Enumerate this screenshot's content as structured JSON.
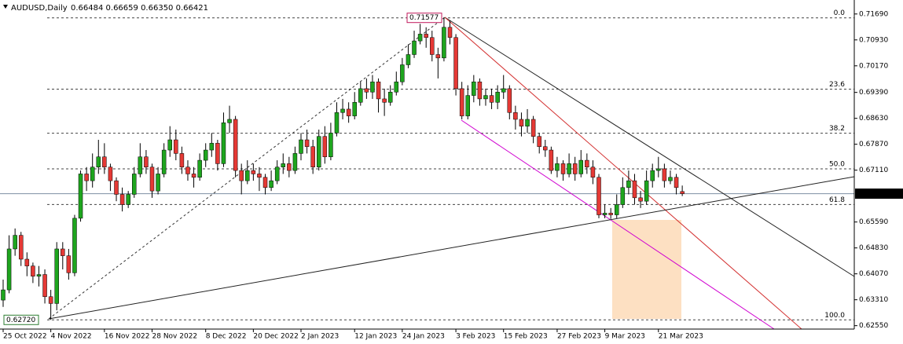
{
  "chart_data": {
    "type": "candlestick",
    "header": {
      "symbol": "AUDUSD,Daily",
      "quote": "0.66484 0.66659 0.66350 0.66421"
    },
    "bull_color": "#1ea51e",
    "bear_color": "#e53935",
    "ylim": [
      0.6245,
      0.721
    ],
    "yticks": [
      {
        "value": 0.7169,
        "label": "0.71690"
      },
      {
        "value": 0.7093,
        "label": "0.70930"
      },
      {
        "value": 0.7017,
        "label": "0.70170"
      },
      {
        "value": 0.6939,
        "label": "0.69390"
      },
      {
        "value": 0.6863,
        "label": "0.68630"
      },
      {
        "value": 0.6787,
        "label": "0.67870"
      },
      {
        "value": 0.6711,
        "label": "0.67110"
      },
      {
        "value": 0.6559,
        "label": "0.65590"
      },
      {
        "value": 0.6483,
        "label": "0.64830"
      },
      {
        "value": 0.6407,
        "label": "0.64070"
      },
      {
        "value": 0.6331,
        "label": "0.63310"
      },
      {
        "value": 0.6255,
        "label": "0.62550"
      }
    ],
    "fib_levels": [
      {
        "value": 0.71577,
        "label": "0.0"
      },
      {
        "value": 0.69487,
        "label": "23.6"
      },
      {
        "value": 0.68194,
        "label": "38.2"
      },
      {
        "value": 0.67149,
        "label": "50.0"
      },
      {
        "value": 0.66103,
        "label": "61.8"
      },
      {
        "value": 0.6272,
        "label": "100.0"
      }
    ],
    "swing_high": 0.71577,
    "swing_low": {
      "value": 0.6272,
      "label": "0.62720"
    },
    "categories": [
      "25 Oct 2022",
      null,
      null,
      null,
      null,
      null,
      null,
      null,
      "4 Nov 2022",
      null,
      null,
      null,
      null,
      null,
      null,
      null,
      null,
      "16 Nov 2022",
      null,
      null,
      null,
      null,
      null,
      null,
      null,
      "28 Nov 2022",
      null,
      null,
      null,
      null,
      null,
      null,
      null,
      null,
      "8 Dec 2022",
      null,
      null,
      null,
      null,
      null,
      null,
      null,
      "20 Dec 2022",
      null,
      null,
      null,
      null,
      null,
      null,
      null,
      "2 Jan 2023",
      null,
      null,
      null,
      null,
      null,
      null,
      null,
      null,
      "12 Jan 2023",
      null,
      null,
      null,
      null,
      null,
      null,
      null,
      "24 Jan 2023",
      null,
      null,
      null,
      null,
      null,
      null,
      null,
      null,
      "3 Feb 2023",
      null,
      null,
      null,
      null,
      null,
      null,
      null,
      "15 Feb 2023",
      null,
      null,
      null,
      null,
      null,
      null,
      null,
      null,
      "27 Feb 2023",
      null,
      null,
      null,
      null,
      null,
      null,
      null,
      "9 Mar 2023",
      null,
      null,
      null,
      null,
      null,
      null,
      null,
      null,
      "21 Mar 2023",
      null,
      null,
      null,
      null
    ],
    "ohlc": [
      [
        0.633,
        0.639,
        0.631,
        0.636
      ],
      [
        0.636,
        0.652,
        0.635,
        0.648
      ],
      [
        0.648,
        0.654,
        0.646,
        0.652
      ],
      [
        0.652,
        0.653,
        0.643,
        0.645
      ],
      [
        0.645,
        0.647,
        0.64,
        0.643
      ],
      [
        0.643,
        0.644,
        0.638,
        0.64
      ],
      [
        0.64,
        0.643,
        0.637,
        0.6405
      ],
      [
        0.6405,
        0.642,
        0.632,
        0.634
      ],
      [
        0.634,
        0.636,
        0.6272,
        0.632
      ],
      [
        0.632,
        0.65,
        0.63,
        0.648
      ],
      [
        0.648,
        0.65,
        0.642,
        0.646
      ],
      [
        0.646,
        0.648,
        0.639,
        0.641
      ],
      [
        0.641,
        0.658,
        0.64,
        0.657
      ],
      [
        0.657,
        0.671,
        0.656,
        0.67
      ],
      [
        0.67,
        0.672,
        0.665,
        0.668
      ],
      [
        0.668,
        0.676,
        0.666,
        0.672
      ],
      [
        0.672,
        0.68,
        0.67,
        0.675
      ],
      [
        0.675,
        0.679,
        0.67,
        0.672
      ],
      [
        0.672,
        0.673,
        0.665,
        0.668
      ],
      [
        0.668,
        0.669,
        0.662,
        0.664
      ],
      [
        0.664,
        0.666,
        0.659,
        0.661
      ],
      [
        0.661,
        0.665,
        0.66,
        0.664
      ],
      [
        0.664,
        0.672,
        0.663,
        0.67
      ],
      [
        0.67,
        0.679,
        0.669,
        0.675
      ],
      [
        0.675,
        0.677,
        0.67,
        0.672
      ],
      [
        0.672,
        0.673,
        0.663,
        0.665
      ],
      [
        0.665,
        0.672,
        0.664,
        0.67
      ],
      [
        0.67,
        0.679,
        0.669,
        0.677
      ],
      [
        0.677,
        0.684,
        0.675,
        0.68
      ],
      [
        0.68,
        0.683,
        0.674,
        0.676
      ],
      [
        0.676,
        0.678,
        0.67,
        0.672
      ],
      [
        0.672,
        0.674,
        0.668,
        0.67
      ],
      [
        0.67,
        0.672,
        0.666,
        0.669
      ],
      [
        0.669,
        0.676,
        0.668,
        0.674
      ],
      [
        0.674,
        0.679,
        0.672,
        0.677
      ],
      [
        0.677,
        0.682,
        0.675,
        0.679
      ],
      [
        0.679,
        0.68,
        0.671,
        0.673
      ],
      [
        0.673,
        0.688,
        0.672,
        0.685
      ],
      [
        0.685,
        0.69,
        0.682,
        0.686
      ],
      [
        0.686,
        0.687,
        0.669,
        0.671
      ],
      [
        0.671,
        0.673,
        0.664,
        0.668
      ],
      [
        0.668,
        0.674,
        0.667,
        0.671
      ],
      [
        0.671,
        0.673,
        0.668,
        0.67
      ],
      [
        0.67,
        0.672,
        0.665,
        0.669
      ],
      [
        0.669,
        0.67,
        0.664,
        0.666
      ],
      [
        0.666,
        0.671,
        0.665,
        0.668
      ],
      [
        0.668,
        0.674,
        0.667,
        0.672
      ],
      [
        0.672,
        0.676,
        0.67,
        0.673
      ],
      [
        0.673,
        0.675,
        0.669,
        0.671
      ],
      [
        0.671,
        0.678,
        0.67,
        0.676
      ],
      [
        0.676,
        0.682,
        0.674,
        0.68
      ],
      [
        0.68,
        0.683,
        0.676,
        0.678
      ],
      [
        0.678,
        0.68,
        0.67,
        0.672
      ],
      [
        0.672,
        0.683,
        0.671,
        0.681
      ],
      [
        0.681,
        0.684,
        0.673,
        0.675
      ],
      [
        0.675,
        0.685,
        0.674,
        0.682
      ],
      [
        0.682,
        0.691,
        0.681,
        0.688
      ],
      [
        0.688,
        0.692,
        0.686,
        0.689
      ],
      [
        0.689,
        0.691,
        0.685,
        0.687
      ],
      [
        0.687,
        0.694,
        0.686,
        0.691
      ],
      [
        0.691,
        0.697,
        0.69,
        0.695
      ],
      [
        0.695,
        0.698,
        0.692,
        0.694
      ],
      [
        0.694,
        0.699,
        0.692,
        0.697
      ],
      [
        0.697,
        0.698,
        0.688,
        0.692
      ],
      [
        0.692,
        0.695,
        0.687,
        0.691
      ],
      [
        0.691,
        0.696,
        0.69,
        0.694
      ],
      [
        0.694,
        0.7,
        0.693,
        0.697
      ],
      [
        0.697,
        0.704,
        0.696,
        0.702
      ],
      [
        0.702,
        0.708,
        0.701,
        0.705
      ],
      [
        0.705,
        0.712,
        0.704,
        0.709
      ],
      [
        0.709,
        0.714,
        0.708,
        0.711
      ],
      [
        0.711,
        0.713,
        0.707,
        0.71
      ],
      [
        0.71,
        0.712,
        0.703,
        0.705
      ],
      [
        0.705,
        0.707,
        0.698,
        0.704
      ],
      [
        0.704,
        0.71577,
        0.703,
        0.713
      ],
      [
        0.713,
        0.715,
        0.708,
        0.71
      ],
      [
        0.71,
        0.711,
        0.693,
        0.695
      ],
      [
        0.695,
        0.697,
        0.686,
        0.687
      ],
      [
        0.687,
        0.696,
        0.686,
        0.693
      ],
      [
        0.693,
        0.699,
        0.691,
        0.697
      ],
      [
        0.697,
        0.698,
        0.69,
        0.692
      ],
      [
        0.692,
        0.695,
        0.69,
        0.693
      ],
      [
        0.693,
        0.695,
        0.689,
        0.691
      ],
      [
        0.691,
        0.696,
        0.689,
        0.694
      ],
      [
        0.694,
        0.699,
        0.692,
        0.695
      ],
      [
        0.695,
        0.696,
        0.686,
        0.688
      ],
      [
        0.688,
        0.69,
        0.683,
        0.686
      ],
      [
        0.686,
        0.688,
        0.681,
        0.684
      ],
      [
        0.684,
        0.689,
        0.682,
        0.686
      ],
      [
        0.686,
        0.687,
        0.679,
        0.681
      ],
      [
        0.681,
        0.682,
        0.676,
        0.678
      ],
      [
        0.678,
        0.68,
        0.675,
        0.677
      ],
      [
        0.677,
        0.678,
        0.67,
        0.671
      ],
      [
        0.671,
        0.675,
        0.669,
        0.673
      ],
      [
        0.673,
        0.674,
        0.668,
        0.67
      ],
      [
        0.67,
        0.676,
        0.669,
        0.673
      ],
      [
        0.673,
        0.675,
        0.668,
        0.67
      ],
      [
        0.67,
        0.677,
        0.669,
        0.674
      ],
      [
        0.674,
        0.676,
        0.67,
        0.672
      ],
      [
        0.672,
        0.674,
        0.667,
        0.669
      ],
      [
        0.669,
        0.67,
        0.657,
        0.658
      ],
      [
        0.658,
        0.661,
        0.657,
        0.6585
      ],
      [
        0.6585,
        0.66,
        0.6568,
        0.658
      ],
      [
        0.658,
        0.664,
        0.657,
        0.661
      ],
      [
        0.661,
        0.669,
        0.66,
        0.666
      ],
      [
        0.666,
        0.671,
        0.664,
        0.668
      ],
      [
        0.668,
        0.67,
        0.661,
        0.663
      ],
      [
        0.663,
        0.665,
        0.66,
        0.662
      ],
      [
        0.662,
        0.671,
        0.661,
        0.668
      ],
      [
        0.668,
        0.673,
        0.666,
        0.671
      ],
      [
        0.671,
        0.675,
        0.669,
        0.6715
      ],
      [
        0.6715,
        0.673,
        0.666,
        0.668
      ],
      [
        0.668,
        0.671,
        0.667,
        0.669
      ],
      [
        0.669,
        0.67,
        0.664,
        0.666
      ],
      [
        0.66484,
        0.66659,
        0.6635,
        0.66421
      ]
    ]
  }
}
